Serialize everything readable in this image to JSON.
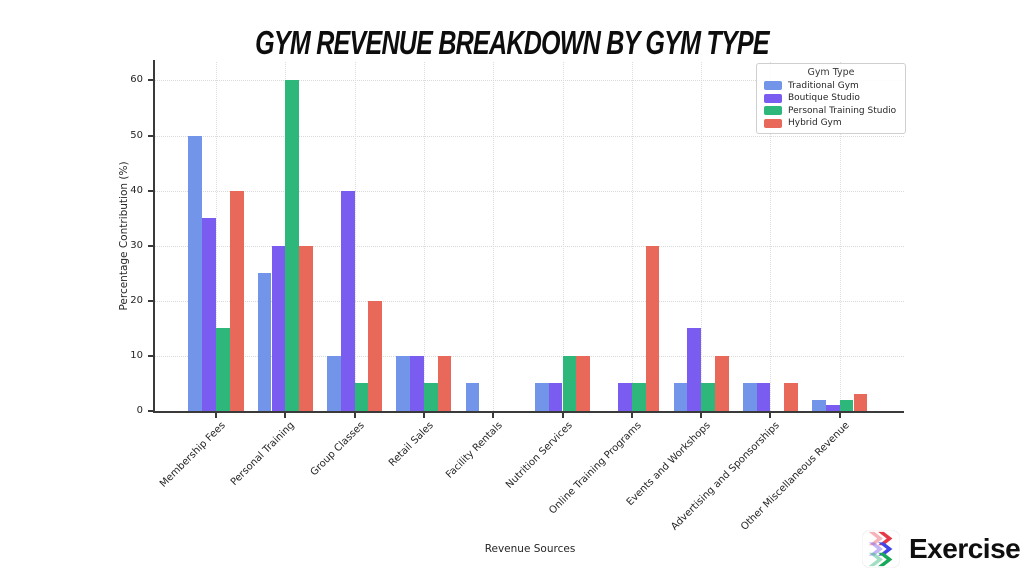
{
  "title": "GYM REVENUE BREAKDOWN BY GYM TYPE",
  "chart_data": {
    "type": "bar",
    "title": "GYM REVENUE BREAKDOWN BY GYM TYPE",
    "xlabel": "Revenue Sources",
    "ylabel": "Percentage Contribution (%)",
    "ylim": [
      0,
      60
    ],
    "yticks": [
      0,
      10,
      20,
      30,
      40,
      50,
      60
    ],
    "grid": "dotted horizontal and vertical",
    "legend_title": "Gym Type",
    "legend_position": "top-right",
    "categories": [
      "Membership Fees",
      "Personal Training",
      "Group Classes",
      "Retail Sales",
      "Facility Rentals",
      "Nutrition Services",
      "Online Training Programs",
      "Events and Workshops",
      "Advertising and Sponsorships",
      "Other Miscellaneous Revenue"
    ],
    "series": [
      {
        "name": "Traditional Gym",
        "color": "#7295EA",
        "values": [
          50,
          25,
          10,
          10,
          5,
          5,
          0,
          5,
          5,
          2
        ]
      },
      {
        "name": "Boutique Studio",
        "color": "#7B5CF0",
        "values": [
          35,
          30,
          40,
          10,
          0,
          5,
          5,
          15,
          5,
          1
        ]
      },
      {
        "name": "Personal Training Studio",
        "color": "#2EB77A",
        "values": [
          15,
          60,
          5,
          5,
          0,
          10,
          5,
          5,
          0,
          2
        ]
      },
      {
        "name": "Hybrid Gym",
        "color": "#E8685A",
        "values": [
          40,
          30,
          20,
          10,
          0,
          10,
          30,
          10,
          5,
          3
        ]
      }
    ]
  },
  "logo": {
    "text": "Exercise",
    "icon": "exercise-chevrons-icon",
    "icon_colors": {
      "top": "#E53948",
      "middle": "#4246E8",
      "bottom": "#18A85A"
    }
  }
}
